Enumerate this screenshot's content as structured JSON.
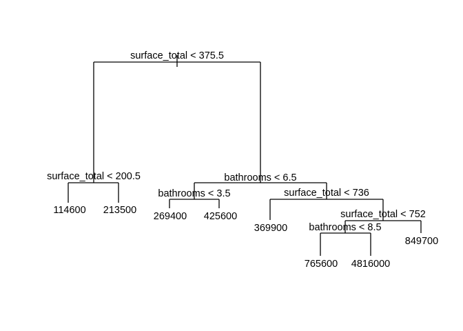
{
  "tree": {
    "root": {
      "split": "surface_total < 375.5"
    },
    "left": {
      "split": "surface_total < 200.5",
      "leaves": [
        "114600",
        "213500"
      ]
    },
    "right": {
      "split": "bathrooms < 6.5",
      "left": {
        "split": "bathrooms < 3.5",
        "leaves": [
          "269400",
          "425600"
        ]
      },
      "right": {
        "split": "surface_total < 736",
        "leaf_left": "369900",
        "right": {
          "split": "surface_total < 752",
          "left": {
            "split": "bathrooms < 8.5",
            "leaves": [
              "765600",
              "4816000"
            ]
          },
          "leaf_right": "849700"
        }
      }
    }
  }
}
